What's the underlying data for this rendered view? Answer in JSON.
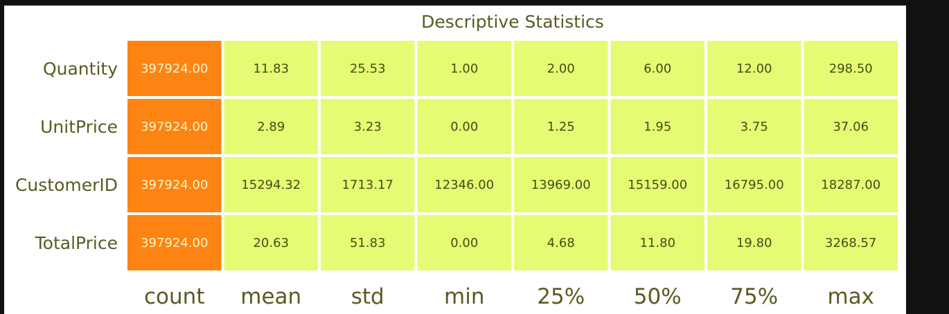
{
  "chart_data": {
    "type": "heatmap",
    "title": "Descriptive Statistics",
    "rows": [
      "Quantity",
      "UnitPrice",
      "CustomerID",
      "TotalPrice"
    ],
    "columns": [
      "count",
      "mean",
      "std",
      "min",
      "25%",
      "50%",
      "75%",
      "max"
    ],
    "values": [
      [
        "397924.00",
        "11.83",
        "25.53",
        "1.00",
        "2.00",
        "6.00",
        "12.00",
        "298.50"
      ],
      [
        "397924.00",
        "2.89",
        "3.23",
        "0.00",
        "1.25",
        "1.95",
        "3.75",
        "37.06"
      ],
      [
        "397924.00",
        "15294.32",
        "1713.17",
        "12346.00",
        "13969.00",
        "15159.00",
        "16795.00",
        "18287.00"
      ],
      [
        "397924.00",
        "20.63",
        "51.83",
        "0.00",
        "4.68",
        "11.80",
        "19.80",
        "3268.57"
      ]
    ],
    "colors": {
      "highlight": "#fd8412",
      "base": "#e4fc74",
      "grid_gap": "#ffffff",
      "text_dark": "#5a5a24",
      "text_on_highlight": "#fff3c8",
      "background": "#ffffff",
      "outer_background": "#111111"
    },
    "highlight_column": "count",
    "legend": "none",
    "grid": false
  }
}
